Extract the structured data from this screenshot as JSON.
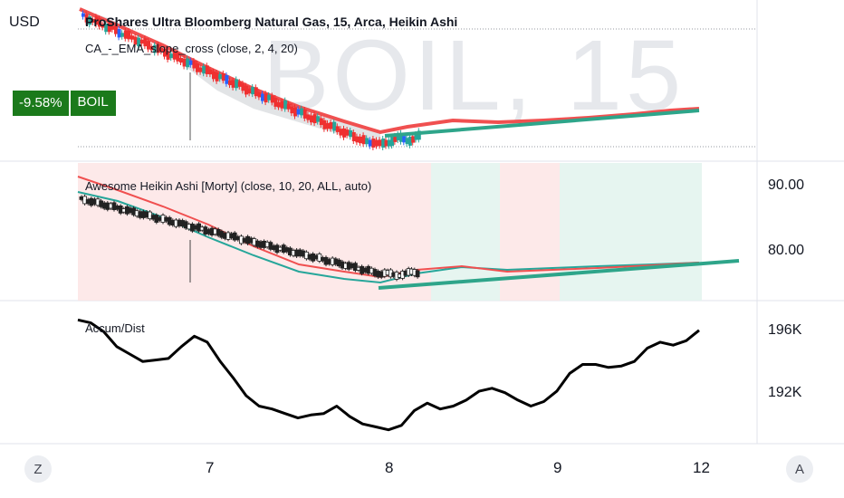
{
  "currency": "USD",
  "watermark": "BOIL, 15",
  "header": {
    "title": "ProShares Ultra Bloomberg Natural Gas, 15, Arca, Heikin Ashi"
  },
  "indicators": {
    "main_study": "CA_-_EMA_slope_cross (close, 2, 4, 20)",
    "awesome_ha": "Awesome Heikin Ashi [Morty] (close, 10, 20, ALL, auto)",
    "accum_dist": "Accum/Dist"
  },
  "badge": {
    "change": "-9.58%",
    "symbol": "BOIL"
  },
  "price_axis": [
    "90.00",
    "80.00"
  ],
  "ad_axis": [
    "196K",
    "192K"
  ],
  "time_axis": [
    "7",
    "8",
    "9",
    "12"
  ],
  "buttons": {
    "left": "Z",
    "right": "A"
  },
  "colors": {
    "up": "#26a69a",
    "down": "#ef5350",
    "ema": "#f05050",
    "trend": "#2ea58a",
    "ad_line": "#000000",
    "badge": "#1b7a1b"
  },
  "chart_data": {
    "type": "line",
    "title": "Accum/Dist",
    "x_ticks": [
      "7",
      "8",
      "9",
      "12"
    ],
    "y_ticks": [
      "196K",
      "192K"
    ],
    "series": [
      {
        "name": "Accum/Dist",
        "values": [
          197.2,
          197.0,
          196.4,
          195.4,
          194.9,
          194.4,
          194.5,
          194.6,
          195.4,
          196.1,
          195.7,
          194.4,
          193.3,
          192.1,
          191.4,
          191.2,
          190.9,
          190.6,
          190.8,
          190.9,
          191.4,
          190.7,
          190.2,
          190.0,
          189.8,
          190.1,
          191.1,
          191.6,
          191.2,
          191.4,
          191.8,
          192.4,
          192.6,
          192.3,
          191.8,
          191.4,
          191.7,
          192.4,
          193.6,
          194.2,
          194.2,
          194.0,
          194.1,
          194.4,
          195.3,
          195.7,
          195.5,
          195.8,
          196.5
        ]
      }
    ]
  }
}
